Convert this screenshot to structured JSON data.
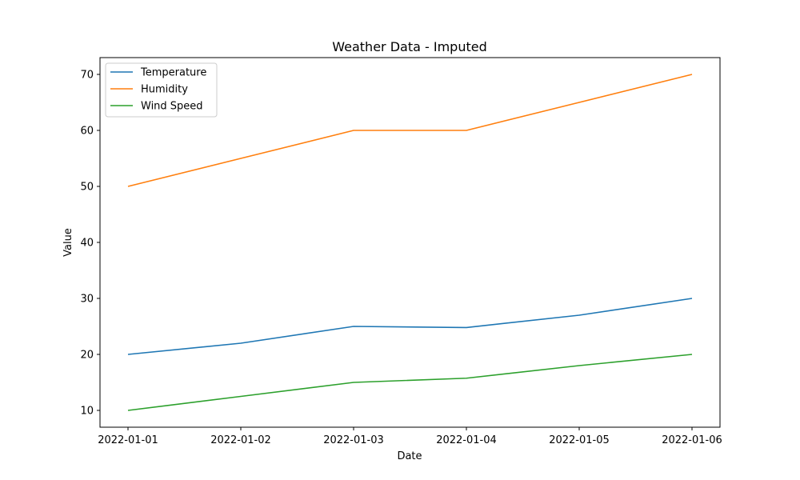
{
  "chart_data": {
    "type": "line",
    "title": "Weather Data - Imputed",
    "xlabel": "Date",
    "ylabel": "Value",
    "x": [
      "2022-01-01",
      "2022-01-02",
      "2022-01-03",
      "2022-01-04",
      "2022-01-05",
      "2022-01-06"
    ],
    "ylim": [
      7,
      73
    ],
    "yticks": [
      10,
      20,
      30,
      40,
      50,
      60,
      70
    ],
    "grid": false,
    "legend_position": "top-left",
    "series": [
      {
        "name": "Temperature",
        "color": "#1f77b4",
        "values": [
          20,
          22,
          25,
          24.8,
          27,
          30
        ]
      },
      {
        "name": "Humidity",
        "color": "#ff7f0e",
        "values": [
          50,
          55,
          60,
          60,
          65,
          70
        ]
      },
      {
        "name": "Wind Speed",
        "color": "#2ca02c",
        "values": [
          10,
          12.5,
          15,
          15.75,
          18,
          20
        ]
      }
    ]
  }
}
